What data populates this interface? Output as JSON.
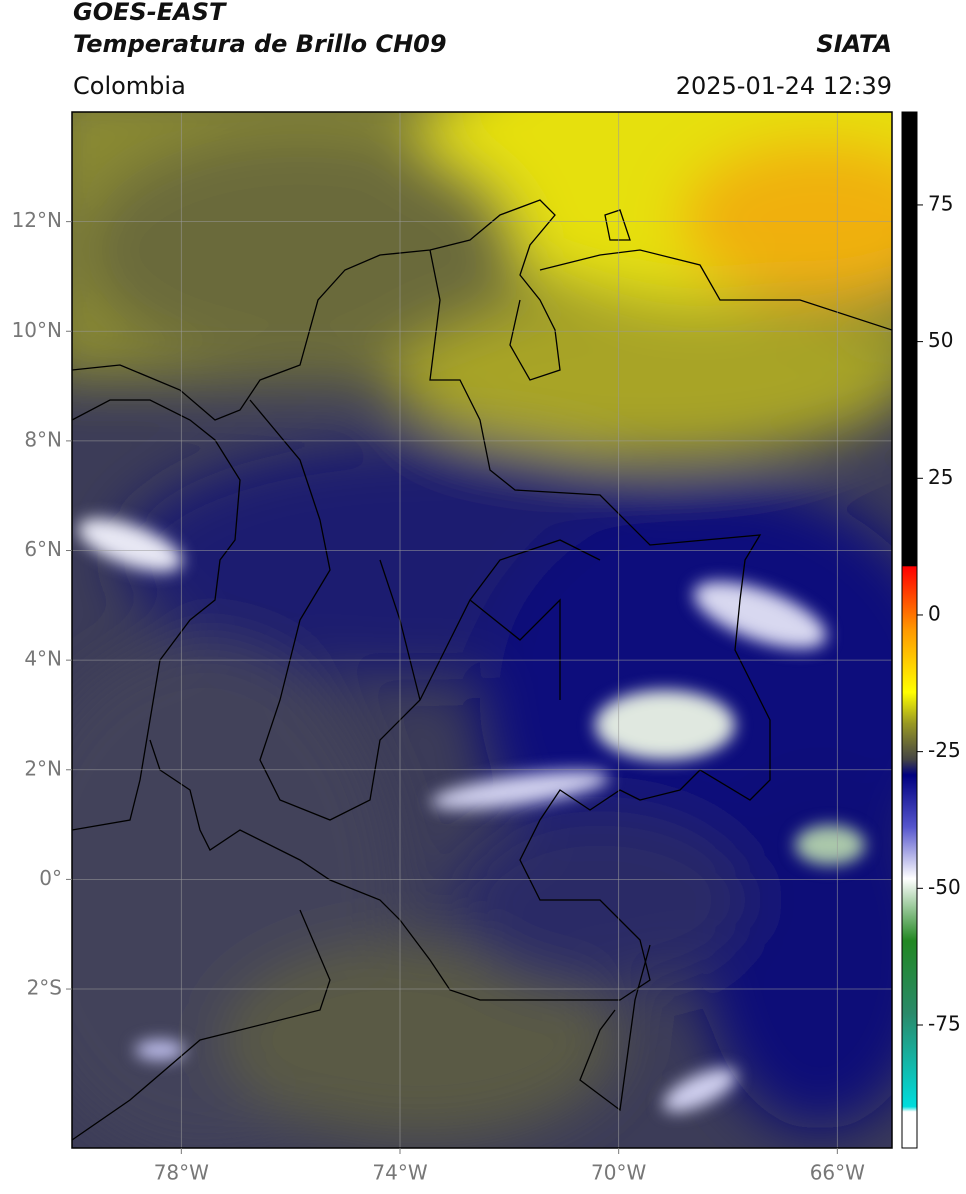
{
  "header": {
    "title": "GOES-EAST",
    "subtitle": "Temperatura de Brillo CH09",
    "region": "Colombia",
    "source": "SIATA",
    "datetime": "2025-01-24 12:39"
  },
  "map": {
    "lonlim": [
      -80,
      -65
    ],
    "latlim": [
      14,
      -4.9
    ],
    "lon_ticks": [
      {
        "value": -78,
        "label": "78°W"
      },
      {
        "value": -74,
        "label": "74°W"
      },
      {
        "value": -70,
        "label": "70°W"
      },
      {
        "value": -66,
        "label": "66°W"
      }
    ],
    "lat_ticks": [
      {
        "value": 12,
        "label": "12°N"
      },
      {
        "value": 10,
        "label": "10°N"
      },
      {
        "value": 8,
        "label": "8°N"
      },
      {
        "value": 6,
        "label": "6°N"
      },
      {
        "value": 4,
        "label": "4°N"
      },
      {
        "value": 2,
        "label": "2°N"
      },
      {
        "value": 0,
        "label": "0°"
      },
      {
        "value": -2,
        "label": "2°S"
      }
    ]
  },
  "colorbar": {
    "lim": [
      92,
      -97.5
    ],
    "ticks": [
      75,
      50,
      25,
      0,
      -25,
      -50,
      -75
    ]
  }
}
